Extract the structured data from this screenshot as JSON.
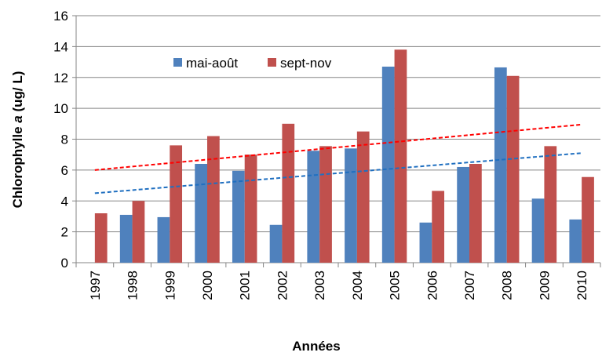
{
  "chart_data": {
    "type": "bar",
    "xlabel": "Années",
    "ylabel": [
      "Chlorophylle",
      "a",
      "(ug/ L)"
    ],
    "categories": [
      "1997",
      "1998",
      "1999",
      "2000",
      "2001",
      "2002",
      "2003",
      "2004",
      "2005",
      "2006",
      "2007",
      "2008",
      "2009",
      "2010"
    ],
    "series": [
      {
        "name": "mai-août",
        "color": "#4f81bd",
        "values": [
          null,
          3.1,
          2.95,
          6.4,
          5.95,
          2.45,
          7.25,
          7.4,
          12.7,
          2.6,
          6.2,
          12.65,
          4.15,
          2.8
        ],
        "trend": [
          4.5,
          7.1
        ],
        "trend_color": "#1f6fc0"
      },
      {
        "name": "sept-nov",
        "color": "#c0504d",
        "values": [
          3.2,
          4.0,
          7.6,
          8.2,
          7.0,
          9.0,
          7.55,
          8.5,
          13.8,
          4.65,
          6.4,
          12.1,
          7.55,
          5.55
        ],
        "trend": [
          6.0,
          8.95
        ],
        "trend_color": "#ff0000"
      }
    ],
    "ylim": [
      0,
      16
    ],
    "yticks": [
      0,
      2,
      4,
      6,
      8,
      10,
      12,
      14,
      16
    ],
    "grid": true
  }
}
